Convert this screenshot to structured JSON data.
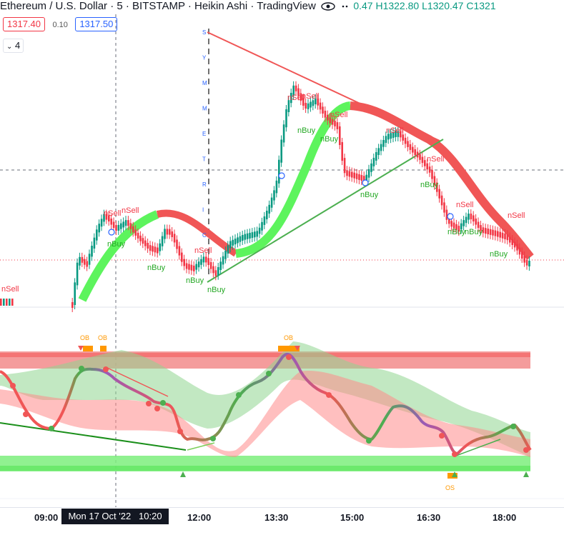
{
  "header": {
    "title": "Ethereum / U.S. Dollar · 5 · BITSTAMP · Heikin Ashi · TradingView",
    "ohlc": "0.47 H1322.80 L1320.47 C1321",
    "eye_icon": "eye-icon",
    "more_icon": "dots-icon"
  },
  "prices": {
    "sell": "1317.40",
    "spread": "0.10",
    "buy": "1317.50"
  },
  "collapse": {
    "icon": "chevron-down-icon",
    "count": "4"
  },
  "labels": {
    "sell": "nSell",
    "buy": "nBuy",
    "ob": "OB",
    "os": "OS",
    "vertical": [
      "S",
      "Y",
      "M",
      "M",
      "E",
      "T",
      "R",
      "I",
      "C"
    ]
  },
  "time_axis": {
    "ticks": [
      "09:00",
      "12:00",
      "13:30",
      "15:00",
      "16:30",
      "18:00"
    ],
    "crosshair_time": "Mon 17 Oct '22   10:20"
  },
  "colors": {
    "up": "#089981",
    "down": "#f23645",
    "ribbon_green": "#4cd964",
    "ribbon_red": "#f05656",
    "sell_zone": "#f28b8b",
    "buy_zone": "#7dee7d",
    "ob_orange": "#ff9800"
  }
}
